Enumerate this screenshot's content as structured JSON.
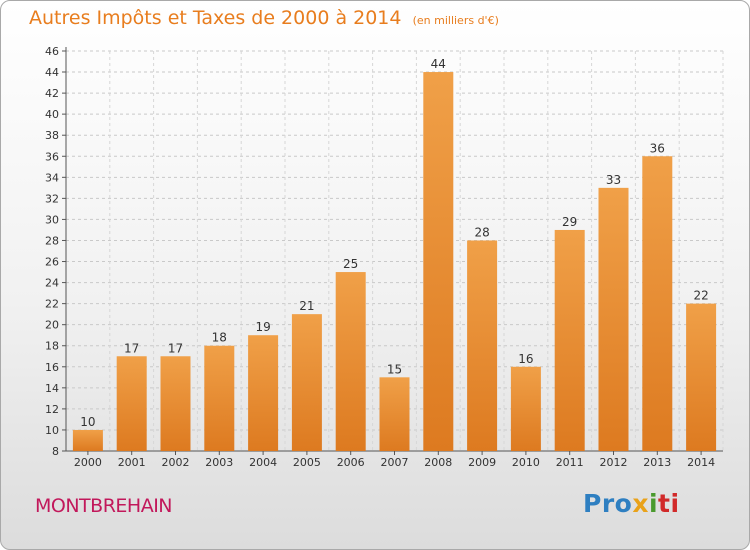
{
  "header": {
    "title": "Autres Impôts et Taxes de 2000 à 2014",
    "unit": "(en milliers d'€)"
  },
  "commune": "MONTBREHAIN",
  "logo_text": "Proxiti",
  "colors": {
    "bar": "#f0a048",
    "bar_dark": "#dd7a20",
    "title": "#e87d1e",
    "commune": "#c2185b"
  },
  "chart_data": {
    "type": "bar",
    "title": "Autres Impôts et Taxes de 2000 à 2014",
    "subtitle": "(en milliers d'€)",
    "categories": [
      "2000",
      "2001",
      "2002",
      "2003",
      "2004",
      "2005",
      "2006",
      "2007",
      "2008",
      "2009",
      "2010",
      "2011",
      "2012",
      "2013",
      "2014"
    ],
    "values": [
      10,
      17,
      17,
      18,
      19,
      21,
      25,
      15,
      44,
      28,
      16,
      29,
      33,
      36,
      22
    ],
    "ylim": [
      8,
      46
    ],
    "yticks": [
      8,
      10,
      12,
      14,
      16,
      18,
      20,
      22,
      24,
      26,
      28,
      30,
      32,
      34,
      36,
      38,
      40,
      42,
      44,
      46
    ],
    "grid": true,
    "xlabel": "",
    "ylabel": ""
  }
}
